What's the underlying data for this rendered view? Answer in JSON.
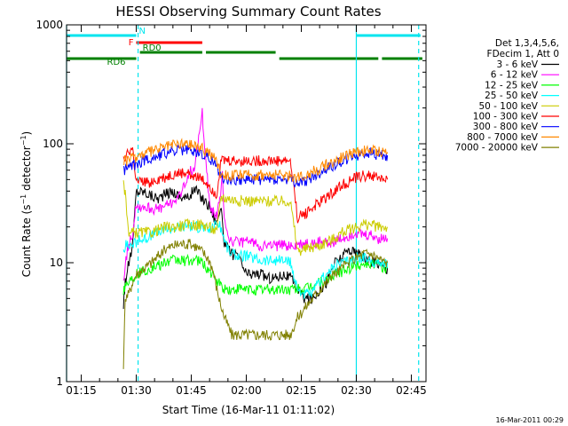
{
  "chart_data": {
    "type": "line",
    "title": "HESSI Observing Summary Count Rates",
    "xlabel": "Start Time (16-Mar-11 01:11:02)",
    "ylabel_main": "Count Rate (s",
    "ylabel_sup1": "−1",
    "ylabel_mid": " detector",
    "ylabel_sup2": "−1",
    "ylabel_end": ")",
    "yscale": "log",
    "ylim": [
      1,
      1000
    ],
    "xlim_minutes": [
      71.0,
      169.0
    ],
    "x_ticks": [
      {
        "m": 75,
        "label": "01:15"
      },
      {
        "m": 90,
        "label": "01:30"
      },
      {
        "m": 105,
        "label": "01:45"
      },
      {
        "m": 120,
        "label": "02:00"
      },
      {
        "m": 135,
        "label": "02:15"
      },
      {
        "m": 150,
        "label": "02:30"
      },
      {
        "m": 165,
        "label": "02:45"
      }
    ],
    "y_ticks": [
      {
        "v": 1,
        "label": "1"
      },
      {
        "v": 10,
        "label": "10"
      },
      {
        "v": 100,
        "label": "100"
      },
      {
        "v": 1000,
        "label": "1000"
      }
    ],
    "legend_header": [
      "Det 1,3,4,5,6,",
      "FDecim 1, Att 0"
    ],
    "series": [
      {
        "name": "3 - 6 keV",
        "color": "#000000",
        "x": [
          86.5,
          87,
          88,
          89,
          90,
          92,
          94,
          96,
          98,
          100,
          102,
          104,
          106,
          108,
          110,
          111,
          112,
          113,
          114,
          115,
          116,
          118,
          120,
          122,
          124,
          126,
          128,
          130,
          132,
          134,
          136,
          138,
          140,
          142,
          144,
          146,
          148,
          150,
          152,
          154,
          156,
          158,
          158.5
        ],
        "y": [
          4.5,
          7,
          10,
          14,
          40,
          40,
          37,
          35,
          38,
          40,
          36,
          35,
          42,
          35,
          30,
          25,
          22,
          30,
          15,
          13,
          12,
          11,
          8,
          8,
          8,
          7.5,
          7.5,
          8,
          7.5,
          6,
          5,
          5,
          6,
          7,
          10,
          11,
          13,
          12,
          11,
          10,
          10,
          9,
          9
        ]
      },
      {
        "name": "6 - 12 keV",
        "color": "#ff00ff",
        "x": [
          86.5,
          87,
          88,
          89,
          90,
          92,
          94,
          96,
          98,
          100,
          102,
          104,
          106,
          108,
          110,
          111,
          112,
          113,
          113.5,
          114,
          115,
          116,
          118,
          120,
          122,
          124,
          126,
          128,
          130,
          132,
          134,
          136,
          138,
          140,
          142,
          144,
          146,
          148,
          150,
          152,
          154,
          156,
          158,
          158.5
        ],
        "y": [
          7,
          10,
          15,
          18,
          30,
          30,
          29,
          28,
          30,
          33,
          36,
          55,
          65,
          180,
          30,
          27,
          25,
          36,
          55,
          25,
          17,
          15,
          15,
          15,
          15,
          14,
          14,
          14,
          14,
          14,
          14,
          14.5,
          14.5,
          15,
          15,
          15,
          16,
          17,
          18,
          17,
          17,
          16,
          16,
          16
        ]
      },
      {
        "name": "12 - 25 keV",
        "color": "#00ff00",
        "x": [
          86.5,
          87,
          88,
          89,
          90,
          92,
          94,
          96,
          98,
          100,
          102,
          104,
          106,
          108,
          110,
          111,
          112,
          113,
          114,
          115,
          116,
          118,
          120,
          122,
          124,
          126,
          128,
          130,
          132,
          134,
          136,
          138,
          140,
          142,
          144,
          146,
          148,
          150,
          152,
          154,
          156,
          158,
          158.5
        ],
        "y": [
          6,
          6.5,
          7,
          7.5,
          8,
          8.5,
          9,
          9.5,
          10,
          10.5,
          10.5,
          10.5,
          10.5,
          10,
          8.5,
          7.5,
          7,
          6.5,
          6,
          6,
          5.8,
          6,
          6,
          6,
          6,
          6,
          6,
          6,
          6,
          6,
          6,
          6.5,
          7,
          7,
          8,
          8.5,
          9,
          9.5,
          10,
          10,
          9.5,
          9,
          9
        ]
      },
      {
        "name": "25 - 50 keV",
        "color": "#00ffff",
        "x": [
          86.5,
          87,
          88,
          89,
          90,
          92,
          94,
          96,
          98,
          100,
          102,
          104,
          106,
          108,
          110,
          111,
          112,
          113,
          114,
          115,
          116,
          118,
          120,
          122,
          124,
          126,
          128,
          130,
          132,
          134,
          136,
          138,
          140,
          142,
          144,
          146,
          148,
          150,
          152,
          154,
          156,
          158,
          158.5
        ],
        "y": [
          13,
          14,
          14,
          14.5,
          15,
          16,
          17,
          18,
          19,
          20,
          20,
          21,
          20,
          20,
          19,
          20,
          22,
          20,
          16,
          13,
          12,
          11.5,
          11.5,
          11,
          10.5,
          10.5,
          10.5,
          10.5,
          10,
          6,
          5.5,
          5.5,
          7,
          8,
          9.5,
          10,
          10.5,
          11,
          11,
          10.5,
          10,
          10,
          10
        ]
      },
      {
        "name": "50 - 100 keV",
        "color": "#cccc00",
        "x": [
          86.5,
          87,
          88,
          89,
          90,
          92,
          94,
          96,
          98,
          100,
          102,
          104,
          106,
          108,
          110,
          111,
          112,
          113,
          114,
          115,
          116,
          118,
          120,
          122,
          124,
          126,
          128,
          130,
          132,
          134,
          136,
          138,
          140,
          142,
          144,
          146,
          148,
          150,
          152,
          154,
          156,
          158,
          158.5
        ],
        "y": [
          45,
          40,
          17,
          18,
          18,
          18,
          18,
          19,
          20,
          20,
          20.5,
          21,
          21,
          21,
          20,
          19,
          18,
          36,
          35,
          35,
          34,
          33.5,
          33.5,
          33,
          33,
          33,
          33,
          33,
          33,
          12.5,
          13,
          13.5,
          14,
          15,
          16,
          18,
          19,
          20,
          21,
          21,
          20,
          20,
          20
        ]
      },
      {
        "name": "100 - 300 keV",
        "color": "#ff0000",
        "x": [
          86.5,
          87,
          88,
          89,
          90,
          92,
          94,
          96,
          98,
          100,
          102,
          104,
          106,
          108,
          110,
          111,
          112,
          113,
          114,
          115,
          116,
          118,
          120,
          122,
          124,
          126,
          128,
          130,
          132,
          134,
          136,
          138,
          140,
          142,
          144,
          146,
          148,
          150,
          152,
          154,
          156,
          158,
          158.5
        ],
        "y": [
          80,
          80,
          85,
          90,
          47,
          47,
          48,
          50,
          52,
          55,
          56,
          57,
          55,
          50,
          45,
          40,
          38,
          72,
          72,
          72,
          72,
          72,
          72,
          72,
          72,
          72,
          72,
          72,
          72,
          24,
          26,
          29,
          32,
          36,
          40,
          45,
          48,
          52,
          54,
          54,
          52,
          50,
          50
        ]
      },
      {
        "name": "300 - 800 keV",
        "color": "#0000ff",
        "x": [
          86.5,
          87,
          88,
          89,
          90,
          92,
          94,
          96,
          98,
          100,
          102,
          104,
          106,
          108,
          110,
          111,
          112,
          113,
          114,
          115,
          116,
          118,
          120,
          122,
          124,
          126,
          128,
          130,
          132,
          134,
          136,
          138,
          140,
          142,
          144,
          146,
          148,
          150,
          152,
          154,
          156,
          158,
          158.5
        ],
        "y": [
          60,
          62,
          64,
          66,
          68,
          72,
          76,
          80,
          84,
          87,
          88,
          88,
          86,
          82,
          76,
          70,
          65,
          54,
          52,
          51,
          50.5,
          50,
          50,
          50,
          50,
          50,
          50,
          50,
          50,
          46,
          48,
          52,
          56,
          62,
          66,
          71,
          75,
          80,
          82,
          83,
          82,
          80,
          80
        ]
      },
      {
        "name": "800 - 7000 keV",
        "color": "#ff8800",
        "x": [
          86.5,
          87,
          88,
          89,
          90,
          92,
          94,
          96,
          98,
          100,
          102,
          104,
          106,
          108,
          110,
          111,
          112,
          113,
          114,
          115,
          116,
          118,
          120,
          122,
          124,
          126,
          128,
          130,
          132,
          134,
          136,
          138,
          140,
          142,
          144,
          146,
          148,
          150,
          152,
          154,
          156,
          158,
          158.5
        ],
        "y": [
          70,
          72,
          74,
          76,
          78,
          82,
          86,
          90,
          95,
          98,
          100,
          100,
          98,
          92,
          85,
          78,
          72,
          57,
          56,
          55,
          55,
          55,
          55,
          55,
          55,
          55,
          55,
          55,
          55,
          52,
          55,
          58,
          62,
          68,
          72,
          78,
          82,
          86,
          88,
          88,
          87,
          85,
          85
        ]
      },
      {
        "name": "7000 - 20000 keV",
        "color": "#808000",
        "x": [
          86.5,
          87,
          88,
          89,
          90,
          92,
          94,
          96,
          98,
          100,
          102,
          104,
          106,
          108,
          110,
          111,
          112,
          113,
          114,
          115,
          116,
          118,
          120,
          122,
          124,
          126,
          128,
          130,
          132,
          134,
          136,
          138,
          140,
          142,
          144,
          146,
          148,
          150,
          152,
          154,
          156,
          158,
          158.5
        ],
        "y": [
          1.2,
          5,
          5.5,
          7,
          8,
          9,
          10,
          11.5,
          13,
          14,
          14.5,
          14.5,
          14,
          12.5,
          10.5,
          8.5,
          6,
          4.5,
          3.5,
          3,
          2.5,
          2.5,
          2.5,
          2.5,
          2.5,
          2.5,
          2.5,
          2.5,
          2.5,
          3.5,
          4.2,
          5,
          6,
          7,
          8,
          9,
          10,
          11,
          12,
          12,
          11,
          10,
          10
        ]
      }
    ],
    "state_bars": [
      {
        "label": "N",
        "color": "#00e5ee",
        "segments": [
          [
            71,
            90
          ],
          [
            150,
            167.5
          ]
        ]
      },
      {
        "label": "F",
        "color": "#ff0000",
        "segments": [
          [
            90,
            108
          ]
        ]
      },
      {
        "label": "RD0",
        "color": "#008000",
        "segments": [
          [
            91,
            108
          ],
          [
            109,
            128
          ]
        ]
      },
      {
        "label": "RD6",
        "color": "#008000",
        "segments": [
          [
            71,
            90
          ],
          [
            129,
            156
          ],
          [
            157,
            168
          ]
        ]
      }
    ],
    "vertical_lines": [
      {
        "m": 71,
        "style": "solid"
      },
      {
        "m": 90.5,
        "style": "dashed"
      },
      {
        "m": 150,
        "style": "solid"
      },
      {
        "m": 167,
        "style": "dashed"
      }
    ]
  },
  "footer_timestamp": "16-Mar-2011 00:29"
}
